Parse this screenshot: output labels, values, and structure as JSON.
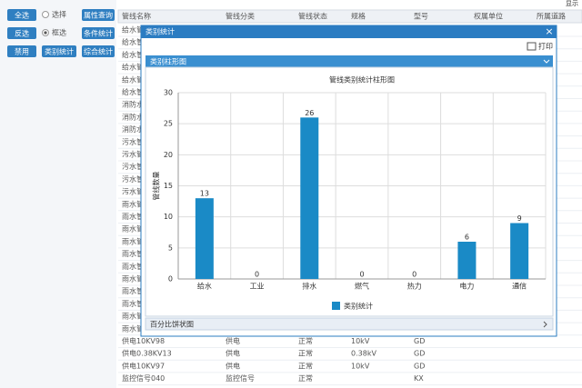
{
  "toolbar": {
    "select_all": "全选",
    "select": "选择",
    "invert": "反选",
    "box_select": "框选",
    "disable": "禁用",
    "category_stats": "类别统计",
    "attr_query": "属性查询",
    "cond_stats": "条件统计",
    "comp_stats": "综合统计"
  },
  "top_right": "显示",
  "table": {
    "headers": [
      "管线名称",
      "管线分类",
      "管线状态",
      "规格",
      "型号",
      "权属单位",
      "所属道路"
    ],
    "rows": [
      {
        "name": "给水管"
      },
      {
        "name": "给水管"
      },
      {
        "name": "给水管"
      },
      {
        "name": "给水管"
      },
      {
        "name": "给水管"
      },
      {
        "name": "给水管"
      },
      {
        "name": "消防水"
      },
      {
        "name": "消防水"
      },
      {
        "name": "消防水"
      },
      {
        "name": "污水管"
      },
      {
        "name": "污水管"
      },
      {
        "name": "污水管"
      },
      {
        "name": "污水管"
      },
      {
        "name": "污水管"
      },
      {
        "name": "雨水管"
      },
      {
        "name": "雨水管"
      },
      {
        "name": "雨水管"
      },
      {
        "name": "雨水管"
      },
      {
        "name": "雨水管"
      },
      {
        "name": "雨水管"
      },
      {
        "name": "雨水管"
      },
      {
        "name": "雨水管"
      },
      {
        "name": "雨水管"
      },
      {
        "name": "雨水管"
      },
      {
        "name": "雨水管"
      },
      {
        "name": "供电10KV98",
        "class": "供电",
        "status": "正常",
        "spec": "10kV",
        "model": "GD"
      },
      {
        "name": "供电0.38KV13",
        "class": "供电",
        "status": "正常",
        "spec": "0.38kV",
        "model": "GD"
      },
      {
        "name": "供电10KV97",
        "class": "供电",
        "status": "正常",
        "spec": "10kV",
        "model": "GD"
      },
      {
        "name": "监控信号040",
        "class": "监控信号",
        "status": "正常",
        "model": "KX"
      }
    ]
  },
  "dialog": {
    "title": "类别统计",
    "close": "×",
    "print": "打印",
    "panel_title": "类别柱形图",
    "collapsed_panel": "百分比饼状图"
  },
  "chart_data": {
    "type": "bar",
    "title": "管线类别统计柱形图",
    "y_label": "管线数量",
    "categories": [
      "给水",
      "工业",
      "排水",
      "燃气",
      "热力",
      "电力",
      "通信"
    ],
    "series": [
      {
        "name": "类别统计",
        "color": "#1a8ac6",
        "values": [
          13,
          0,
          26,
          0,
          0,
          6,
          9
        ]
      }
    ],
    "ylim": [
      0,
      30
    ],
    "yticks": [
      0,
      5,
      10,
      15,
      20,
      25,
      30
    ],
    "grid": true
  }
}
